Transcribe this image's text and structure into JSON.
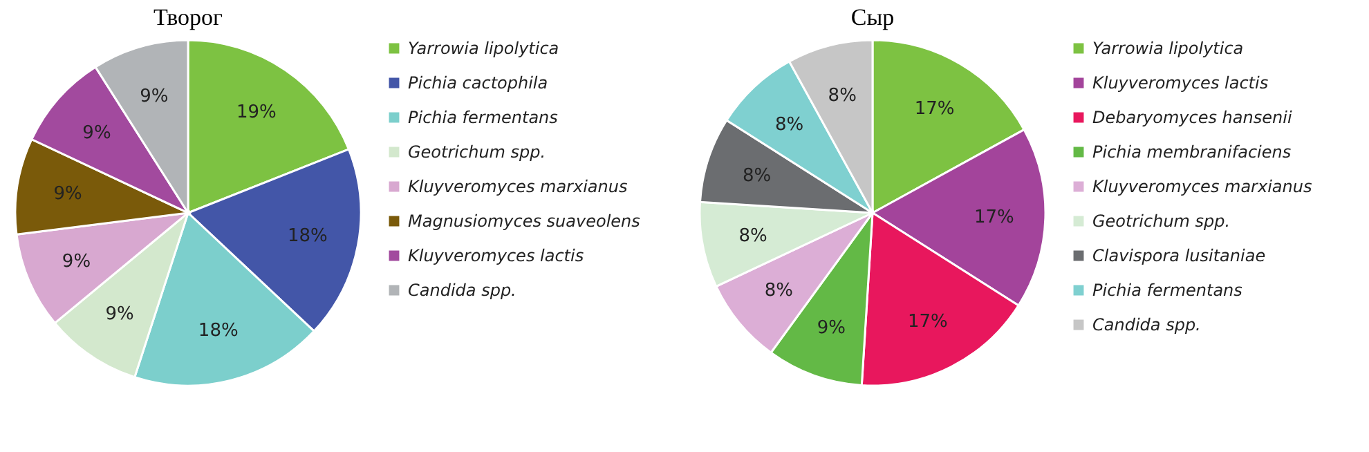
{
  "chart_data": [
    {
      "type": "pie",
      "title": "Творог",
      "legend": "right",
      "categories": [
        "Yarrowia lipolytica",
        "Pichia cactophila",
        "Pichia fermentans",
        "Geotrichum spp.",
        "Kluyveromyces marxianus",
        "Magnusiomyces suaveolens",
        "Kluyveromyces lactis",
        "Candida spp."
      ],
      "values": [
        19,
        18,
        18,
        9,
        9,
        9,
        9,
        9
      ],
      "value_labels": [
        "19%",
        "18%",
        "18%",
        "9%",
        "9%",
        "9%",
        "9%",
        "9%"
      ],
      "colors": [
        "#7dc242",
        "#4356a8",
        "#7ccfcc",
        "#d3e8cd",
        "#d8a8d0",
        "#7a5a0a",
        "#a24a9e",
        "#b1b4b7"
      ]
    },
    {
      "type": "pie",
      "title": "Сыр",
      "legend": "right",
      "categories": [
        "Yarrowia lipolytica",
        "Kluyveromyces lactis",
        "Debaryomyces hansenii",
        "Pichia membranifaciens",
        "Kluyveromyces marxianus",
        "Geotrichum spp.",
        "Clavispora lusitaniae",
        "Pichia fermentans",
        "Candida spp."
      ],
      "values": [
        17,
        17,
        17,
        9,
        8,
        8,
        8,
        8,
        8
      ],
      "value_labels": [
        "17%",
        "17%",
        "17%",
        "9%",
        "8%",
        "8%",
        "8%",
        "8%",
        "8%"
      ],
      "colors": [
        "#7dc242",
        "#a3449b",
        "#e8175d",
        "#63b946",
        "#dcaed6",
        "#d5ebd4",
        "#6b6d70",
        "#7fd0d0",
        "#c6c6c6"
      ]
    }
  ]
}
